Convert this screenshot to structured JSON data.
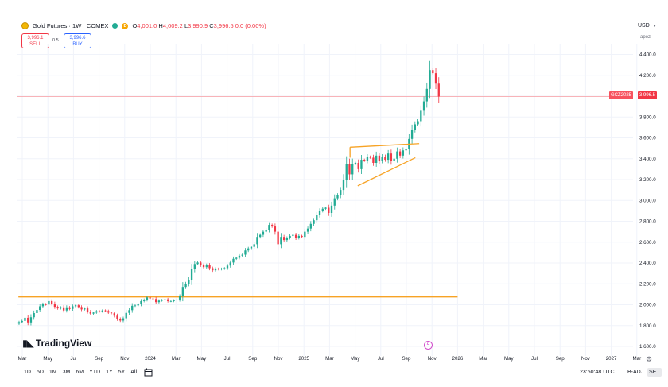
{
  "header": {
    "title": "Gold Futures · 1W · COMEX",
    "ohlc": {
      "o_label": "O",
      "o": "4,001.0",
      "h_label": "H",
      "h": "4,009.2",
      "l_label": "L",
      "l": "3,990.9",
      "c_label": "C",
      "c": "3,996.5",
      "change": "0.0 (0.00%)"
    },
    "d_badge": "D",
    "sell": {
      "price": "3,996.1",
      "label": "SELL"
    },
    "spread": "0.5",
    "buy": {
      "price": "3,996.6",
      "label": "BUY"
    }
  },
  "currency": {
    "label": "USD"
  },
  "unit_label": "apoz",
  "price_tag": {
    "symbol": "GCZ2025",
    "value": "3,996.5"
  },
  "logo_text": "TradingView",
  "bottom_bar": {
    "ranges": [
      "1D",
      "5D",
      "1M",
      "3M",
      "6M",
      "YTD",
      "1Y",
      "5Y",
      "All"
    ],
    "utc_time": "23:50:48 UTC",
    "adj_label": "B-ADJ",
    "set_label": "SET"
  },
  "chart_data": {
    "type": "candlestick",
    "title": "Gold Futures · 1W · COMEX",
    "y_ticks": [
      1600,
      1800,
      2000,
      2200,
      2400,
      2600,
      2800,
      3000,
      3200,
      3400,
      3600,
      3800,
      4000,
      4200,
      4400
    ],
    "y_tick_labels": [
      "1,600.0",
      "1,800.0",
      "2,000.0",
      "2,200.0",
      "2,400.0",
      "2,600.0",
      "2,800.0",
      "3,000.0",
      "3,200.0",
      "3,400.0",
      "3,600.0",
      "3,800.0",
      "4,000.0",
      "4,200.0",
      "4,400.0"
    ],
    "ylim": [
      1580,
      4480
    ],
    "x_ticks": [
      {
        "label": "Mar",
        "t": 0.0
      },
      {
        "label": "May",
        "t": 2.0
      },
      {
        "label": "Jul",
        "t": 4.0
      },
      {
        "label": "Sep",
        "t": 6.0
      },
      {
        "label": "Nov",
        "t": 8.0
      },
      {
        "label": "2024",
        "t": 10.0
      },
      {
        "label": "Mar",
        "t": 12.0
      },
      {
        "label": "May",
        "t": 14.0
      },
      {
        "label": "Jul",
        "t": 16.0
      },
      {
        "label": "Sep",
        "t": 18.0
      },
      {
        "label": "Nov",
        "t": 20.0
      },
      {
        "label": "2025",
        "t": 22.0
      },
      {
        "label": "Mar",
        "t": 24.0
      },
      {
        "label": "May",
        "t": 26.0
      },
      {
        "label": "Jul",
        "t": 28.0
      },
      {
        "label": "Sep",
        "t": 30.0
      },
      {
        "label": "Nov",
        "t": 32.0
      },
      {
        "label": "2026",
        "t": 34.0
      },
      {
        "label": "Mar",
        "t": 36.0
      },
      {
        "label": "May",
        "t": 38.0
      },
      {
        "label": "Jul",
        "t": 40.0
      },
      {
        "label": "Sep",
        "t": 42.0
      },
      {
        "label": "Nov",
        "t": 44.0
      },
      {
        "label": "2027",
        "t": 46.0
      },
      {
        "label": "Mar",
        "t": 48.0
      }
    ],
    "closes": [
      1833,
      1845,
      1875,
      1830,
      1880,
      1920,
      1950,
      1985,
      2005,
      2002,
      2035,
      2010,
      1980,
      1965,
      1975,
      1945,
      1975,
      1960,
      1985,
      1995,
      1978,
      1955,
      1965,
      1935,
      1915,
      1925,
      1938,
      1935,
      1945,
      1940,
      1925,
      1918,
      1895,
      1865,
      1848,
      1870,
      1922,
      1948,
      1990,
      1993,
      2005,
      2035,
      2048,
      2070,
      2060,
      2055,
      2025,
      2040,
      2045,
      2052,
      2035,
      2035,
      2042,
      2050,
      2080,
      2170,
      2200,
      2240,
      2340,
      2390,
      2405,
      2380,
      2360,
      2380,
      2350,
      2330,
      2345,
      2340,
      2345,
      2350,
      2375,
      2405,
      2440,
      2450,
      2470,
      2480,
      2520,
      2540,
      2555,
      2580,
      2650,
      2670,
      2700,
      2720,
      2765,
      2750,
      2700,
      2580,
      2650,
      2620,
      2640,
      2660,
      2670,
      2640,
      2660,
      2650,
      2700,
      2730,
      2775,
      2810,
      2860,
      2900,
      2920,
      2930,
      2880,
      2950,
      3020,
      3050,
      3100,
      3200,
      3350,
      3250,
      3350,
      3360,
      3300,
      3390,
      3380,
      3420,
      3410,
      3360,
      3430,
      3380,
      3420,
      3390,
      3450,
      3380,
      3400,
      3470,
      3430,
      3480,
      3490,
      3590,
      3680,
      3730,
      3760,
      3860,
      3950,
      4070,
      4250,
      4220,
      4120,
      3996.5
    ],
    "candle_start_t": -0.25,
    "candle_step_t": 0.2325,
    "hline": {
      "price": 2075,
      "t_start": -0.3,
      "t_end": 34.0
    },
    "triangle": {
      "upper": [
        {
          "t": 25.6,
          "price": 3510
        },
        {
          "t": 31.0,
          "price": 3545
        }
      ],
      "lower": [
        {
          "t": 26.2,
          "price": 3140
        },
        {
          "t": 30.7,
          "price": 3410
        }
      ],
      "left_edge": [
        {
          "t": 25.6,
          "price": 3510
        },
        {
          "t": 25.6,
          "price": 3410
        }
      ]
    },
    "last_price": 3996.5,
    "colors": {
      "up": "#22ab94",
      "down": "#f23645",
      "hline": "#f7a325",
      "triangle": "#f7a325",
      "grid": "#f0f3fa",
      "last_line": "#f7a8ae"
    }
  }
}
